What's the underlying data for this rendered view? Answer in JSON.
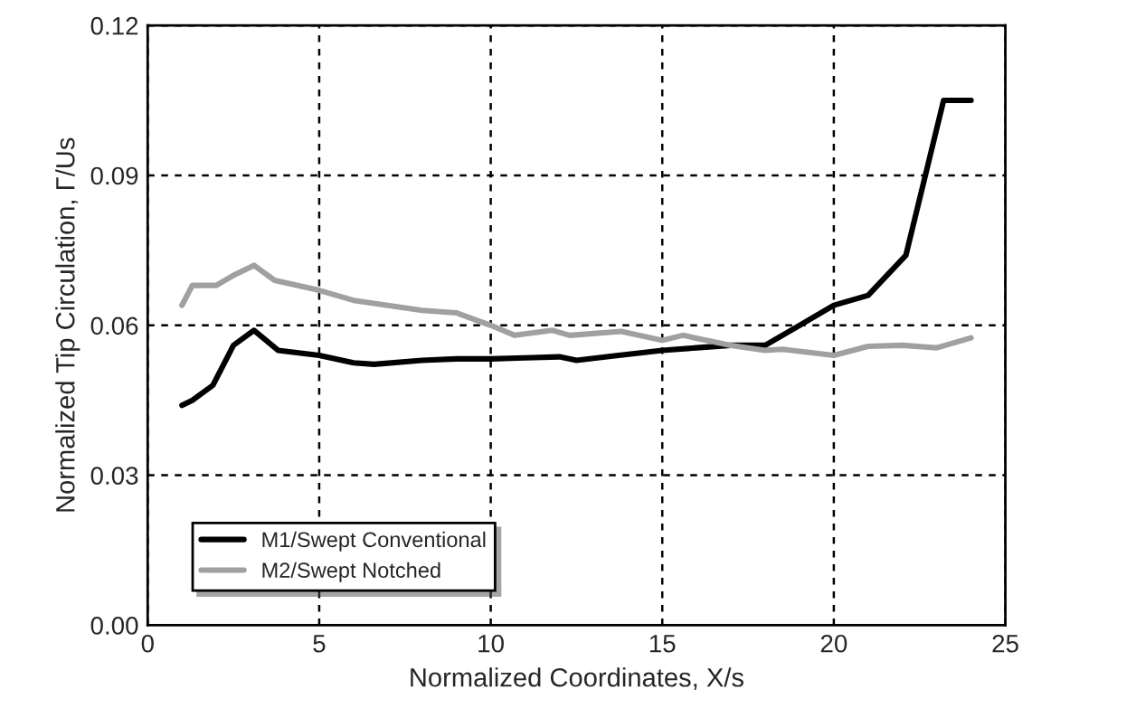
{
  "chart_data": {
    "type": "line",
    "xlabel": "Normalized Coordinates, X/s",
    "ylabel": "Normalized Tip Circulation, Γ/Us",
    "xlim": [
      0,
      25
    ],
    "xticks": [
      0,
      5,
      10,
      15,
      20,
      25
    ],
    "ylim": [
      0,
      0.12
    ],
    "yticks": [
      {
        "value": 0,
        "label": "0.00"
      },
      {
        "value": 0.03,
        "label": "0.03"
      },
      {
        "value": 0.06,
        "label": "0.06"
      },
      {
        "value": 0.09,
        "label": "0.09"
      },
      {
        "value": 0.12,
        "label": "0.12"
      }
    ],
    "grid": true,
    "legend": "bottom left",
    "line_style": "solid",
    "marker": "none",
    "series": [
      {
        "name": "M1/Swept Conventional",
        "color": "#000000",
        "x": [
          1,
          1.3,
          1.9,
          2.5,
          3.1,
          3.8,
          5,
          6,
          6.6,
          8,
          9,
          10,
          11,
          12,
          12.5,
          13.5,
          15,
          16,
          17,
          18,
          19,
          20,
          21,
          22.1,
          23.2,
          24
        ],
        "values": [
          0.044,
          0.045,
          0.048,
          0.056,
          0.059,
          0.055,
          0.054,
          0.0525,
          0.0522,
          0.053,
          0.0533,
          0.0533,
          0.0535,
          0.0537,
          0.053,
          0.0538,
          0.055,
          0.0555,
          0.056,
          0.056,
          0.06,
          0.064,
          0.066,
          0.074,
          0.105,
          0.105
        ]
      },
      {
        "name": "M2/Swept Notched",
        "color": "#a0a0a0",
        "x": [
          1,
          1.3,
          2,
          2.5,
          3.1,
          3.7,
          5,
          6,
          7,
          8,
          9,
          10,
          10.7,
          11.8,
          12.3,
          13.8,
          15,
          15.6,
          17,
          18,
          18.5,
          20,
          21,
          22,
          23,
          24
        ],
        "values": [
          0.064,
          0.068,
          0.068,
          0.07,
          0.072,
          0.069,
          0.067,
          0.065,
          0.064,
          0.063,
          0.0625,
          0.06,
          0.058,
          0.059,
          0.058,
          0.0588,
          0.057,
          0.058,
          0.056,
          0.055,
          0.0552,
          0.054,
          0.0558,
          0.056,
          0.0555,
          0.0575
        ]
      }
    ]
  }
}
